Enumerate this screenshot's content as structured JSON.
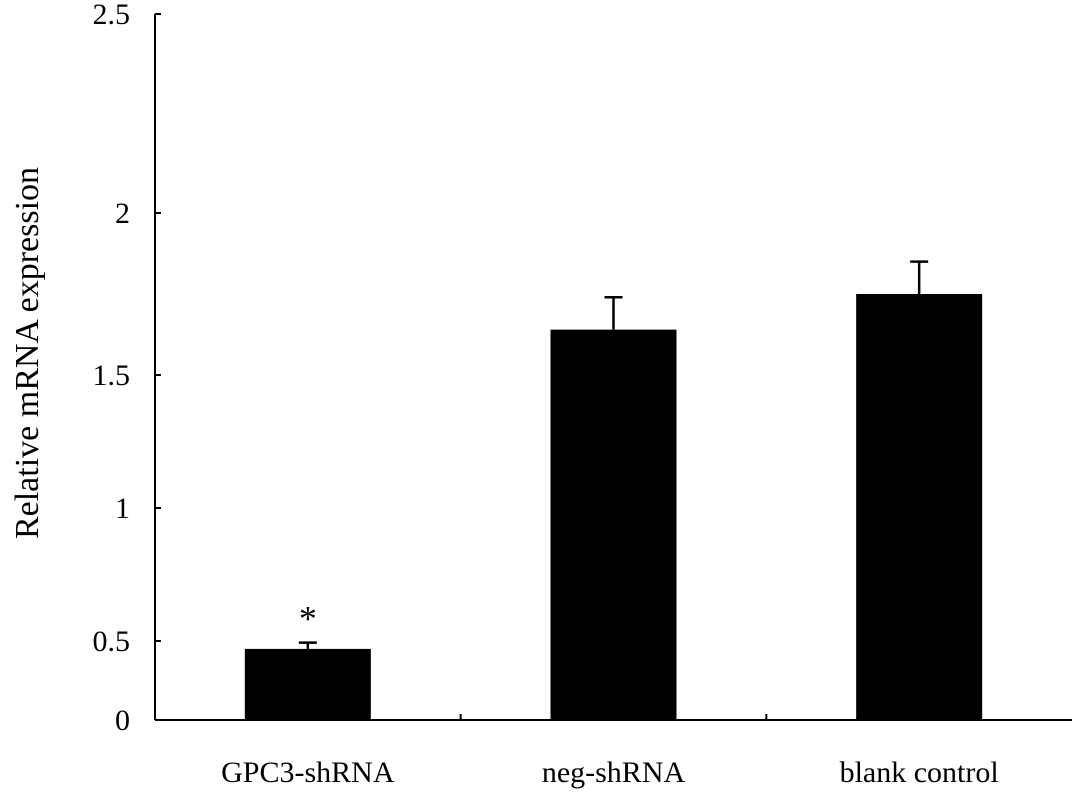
{
  "chart_data": {
    "type": "bar",
    "title": "",
    "xlabel": "",
    "ylabel": "Relative mRNA expression",
    "categories": [
      "GPC3-shRNA",
      "neg-shRNA",
      "blank control"
    ],
    "series": [
      {
        "values": [
          0.45,
          1.64,
          1.75
        ],
        "error": [
          0.04,
          0.1,
          0.1
        ]
      }
    ],
    "ylim": [
      0,
      2.5
    ],
    "yticks": [
      {
        "value": 0,
        "label": "0"
      },
      {
        "value": 0.5,
        "label": "0.5"
      },
      {
        "value": 1,
        "label": "1"
      },
      {
        "value": 1.5,
        "label": "1.5"
      },
      {
        "value": 2,
        "label": "2"
      },
      {
        "value": 2.5,
        "label": "2.5"
      }
    ],
    "annotations": [
      {
        "category": "GPC3-shRNA",
        "text": "*"
      }
    ],
    "grid": false,
    "legend": "none",
    "bar_color": "#000000",
    "axis_color": "#000000"
  }
}
